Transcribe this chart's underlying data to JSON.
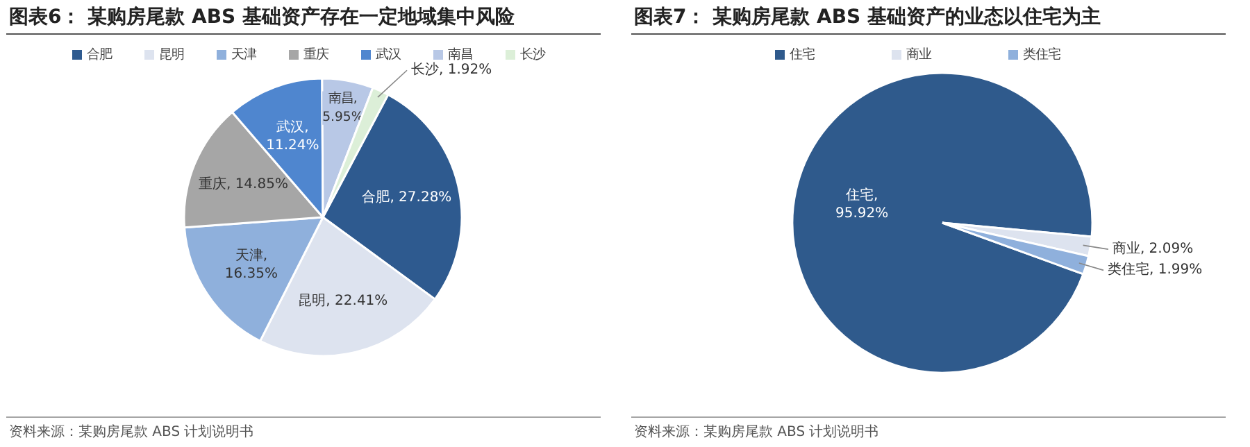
{
  "chart_data": [
    {
      "type": "pie",
      "title": "图表6：  某购房尾款 ABS 基础资产存在一定地域集中风险",
      "categories": [
        "合肥",
        "昆明",
        "天津",
        "重庆",
        "武汉",
        "南昌",
        "长沙"
      ],
      "values": [
        27.28,
        22.41,
        16.35,
        14.85,
        11.24,
        5.95,
        1.92
      ],
      "colors": [
        "#2e5a8f",
        "#dde3ef",
        "#8fb0dc",
        "#a6a6a6",
        "#4f86cf",
        "#b8c8e6",
        "#dcefd8"
      ],
      "value_labels": [
        "合肥, 27.28%",
        "昆明, 22.41%",
        "天津,\n16.35%",
        "重庆, 14.85%",
        "武汉,\n11.24%",
        "南昌,\n5.95%",
        "长沙, 1.92%"
      ],
      "legend": "top",
      "annotations": [
        "资料来源：某购房尾款 ABS 计划说明书"
      ]
    },
    {
      "type": "pie",
      "title": "图表7：  某购房尾款 ABS 基础资产的业态以住宅为主",
      "categories": [
        "住宅",
        "商业",
        "类住宅"
      ],
      "values": [
        95.92,
        2.09,
        1.99
      ],
      "colors": [
        "#2f5a8c",
        "#dde3ef",
        "#8fb0dc"
      ],
      "value_labels": [
        "住宅,\n95.92%",
        "商业, 2.09%",
        "类住宅, 1.99%"
      ],
      "legend": "top",
      "annotations": [
        "资料来源：某购房尾款 ABS 计划说明书"
      ]
    }
  ]
}
